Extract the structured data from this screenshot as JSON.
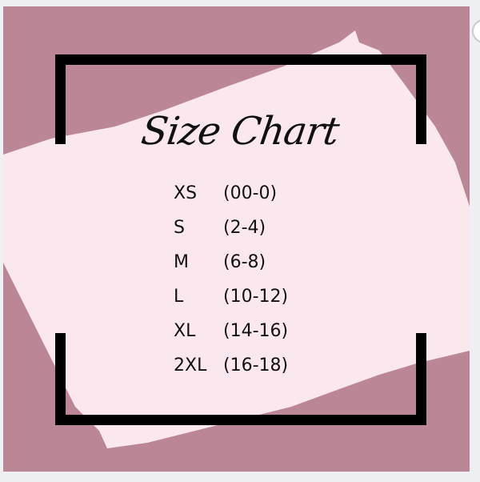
{
  "title": "Size Chart",
  "sizes": [
    {
      "size": "XS",
      "range": "(00-0)"
    },
    {
      "size": "S",
      "range": "(2-4)"
    },
    {
      "size": "M",
      "range": "(6-8)"
    },
    {
      "size": "L",
      "range": "(10-12)"
    },
    {
      "size": "XL",
      "range": "(14-16)"
    },
    {
      "size": "2XL",
      "range": "(16-18)"
    }
  ],
  "colors": {
    "background": "#bb8797",
    "brush": "#fbe8ee",
    "frame": "#000000",
    "text": "#111111"
  }
}
